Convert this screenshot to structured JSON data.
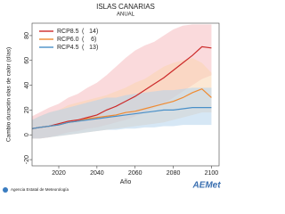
{
  "chart_data": {
    "type": "line",
    "title": "ISLAS CANARIAS",
    "subtitle": "ANUAL",
    "x_label": "Año",
    "y_label": "Cambio duración olas de calor (días)",
    "x": [
      2006,
      2010,
      2015,
      2020,
      2025,
      2030,
      2035,
      2040,
      2045,
      2050,
      2055,
      2060,
      2065,
      2070,
      2075,
      2080,
      2085,
      2090,
      2095,
      2100
    ],
    "xlim": [
      2006,
      2104
    ],
    "xticks": [
      2020,
      2040,
      2060,
      2080,
      2100
    ],
    "ylim": [
      -25,
      90
    ],
    "yticks": [
      -20,
      0,
      20,
      40,
      60,
      80
    ],
    "series": [
      {
        "name": "RCP8.5",
        "count": "(   14)",
        "color": "#cc2a2a",
        "band_color": "#f6bcc0",
        "values": [
          5,
          6,
          7,
          9,
          11,
          12,
          14,
          16,
          20,
          23,
          27,
          31,
          36,
          41,
          46,
          52,
          58,
          64,
          71,
          70
        ],
        "upper": [
          15,
          18,
          22,
          25,
          30,
          33,
          38,
          42,
          48,
          55,
          62,
          68,
          72,
          75,
          80,
          85,
          88,
          89,
          89,
          89
        ],
        "lower": [
          -3,
          -3,
          -2,
          0,
          2,
          3,
          5,
          6,
          8,
          10,
          12,
          15,
          18,
          22,
          25,
          30,
          35,
          40,
          45,
          48
        ]
      },
      {
        "name": "RCP6.0",
        "count": "(    6)",
        "color": "#f08a30",
        "band_color": "#f9d6b0",
        "values": [
          5,
          6,
          7,
          8,
          10,
          11,
          13,
          14,
          15,
          16,
          18,
          19,
          21,
          23,
          25,
          27,
          30,
          34,
          37,
          30
        ],
        "upper": [
          12,
          15,
          18,
          20,
          24,
          26,
          28,
          30,
          32,
          35,
          38,
          42,
          45,
          50,
          55,
          58,
          60,
          62,
          58,
          50
        ],
        "lower": [
          -3,
          -3,
          -2,
          -1,
          0,
          1,
          2,
          3,
          4,
          5,
          6,
          7,
          8,
          9,
          10,
          12,
          14,
          16,
          18,
          18
        ]
      },
      {
        "name": "RCP4.5",
        "count": "(   13)",
        "color": "#4a90c8",
        "band_color": "#b4d4ec",
        "values": [
          5,
          6,
          7,
          8,
          10,
          11,
          12,
          13,
          14,
          15,
          16,
          17,
          18,
          19,
          20,
          20,
          21,
          22,
          22,
          22
        ],
        "upper": [
          12,
          15,
          18,
          20,
          22,
          24,
          26,
          28,
          30,
          30,
          32,
          33,
          34,
          35,
          36,
          36,
          37,
          38,
          38,
          38
        ],
        "lower": [
          -3,
          -3,
          -2,
          -1,
          0,
          1,
          2,
          3,
          4,
          4,
          5,
          5,
          6,
          6,
          7,
          7,
          8,
          8,
          8,
          8
        ]
      }
    ]
  },
  "footer": "Agencia Estatal de Meteorología",
  "logo": "AEMet"
}
